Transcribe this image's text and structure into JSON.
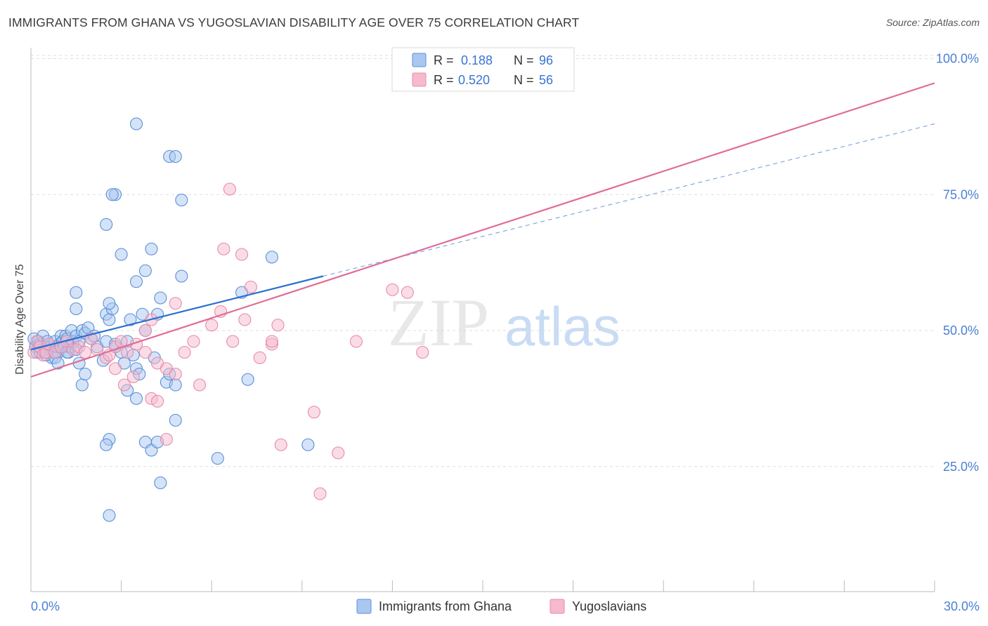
{
  "title": "IMMIGRANTS FROM GHANA VS YUGOSLAVIAN DISABILITY AGE OVER 75 CORRELATION CHART",
  "source": "Source: ZipAtlas.com",
  "watermark": {
    "zip": "ZIP",
    "atlas": "atlas"
  },
  "colors": {
    "blue_fill": "#a9c7f0",
    "blue_stroke": "#5a8fd8",
    "blue_line": "#2a6fcf",
    "pink_fill": "#f6b9cd",
    "pink_stroke": "#e88aab",
    "pink_line": "#e06d98",
    "tick_text": "#4a7fd4",
    "grid": "#dddddd"
  },
  "legend": {
    "rows": [
      {
        "r_label": "R =",
        "r_value": "0.188",
        "n_label": "N =",
        "n_value": "96"
      },
      {
        "r_label": "R =",
        "r_value": "0.520",
        "n_label": "N =",
        "n_value": "56"
      }
    ]
  },
  "bottom_legend": {
    "series1": "Immigrants from Ghana",
    "series2": "Yugoslavians"
  },
  "chart_data": {
    "type": "scatter",
    "title": "IMMIGRANTS FROM GHANA VS YUGOSLAVIAN DISABILITY AGE OVER 75 CORRELATION CHART",
    "xlabel": "",
    "ylabel": "Disability Age Over 75",
    "xlim": [
      0,
      30
    ],
    "ylim": [
      2,
      102
    ],
    "x_tick_labels": [
      "0.0%",
      "30.0%"
    ],
    "y_ticks": [
      25,
      50,
      75,
      100
    ],
    "y_tick_labels": [
      "25.0%",
      "50.0%",
      "75.0%",
      "100.0%"
    ],
    "series": [
      {
        "name": "Immigrants from Ghana",
        "color": "blue",
        "R": 0.188,
        "N": 96,
        "trend": {
          "x": [
            0,
            9.7
          ],
          "y": [
            46.5,
            60.0
          ],
          "dash_x": [
            9.7,
            30
          ],
          "dash_y": [
            60.0,
            88.0
          ]
        },
        "points": [
          [
            0.1,
            48.5
          ],
          [
            0.15,
            47
          ],
          [
            0.2,
            46
          ],
          [
            0.25,
            48
          ],
          [
            0.3,
            47.5
          ],
          [
            0.35,
            46.5
          ],
          [
            0.4,
            49
          ],
          [
            0.45,
            46
          ],
          [
            0.5,
            47
          ],
          [
            0.55,
            48
          ],
          [
            0.6,
            46.5
          ],
          [
            0.65,
            47
          ],
          [
            0.7,
            45
          ],
          [
            0.75,
            46
          ],
          [
            0.8,
            48
          ],
          [
            0.85,
            47
          ],
          [
            0.9,
            46
          ],
          [
            0.95,
            47.5
          ],
          [
            1.0,
            49
          ],
          [
            1.05,
            48
          ],
          [
            1.1,
            47
          ],
          [
            1.15,
            49
          ],
          [
            1.2,
            48.5
          ],
          [
            1.25,
            46
          ],
          [
            1.3,
            47
          ],
          [
            1.35,
            50
          ],
          [
            1.4,
            48
          ],
          [
            1.5,
            49
          ],
          [
            1.6,
            48
          ],
          [
            1.7,
            50
          ],
          [
            0.3,
            46
          ],
          [
            0.5,
            45.5
          ],
          [
            0.8,
            45
          ],
          [
            1.2,
            46
          ],
          [
            1.5,
            46.5
          ],
          [
            1.8,
            49.5
          ],
          [
            2.0,
            48.5
          ],
          [
            2.2,
            47
          ],
          [
            2.5,
            48
          ],
          [
            2.8,
            47.5
          ],
          [
            0.9,
            44
          ],
          [
            1.6,
            44
          ],
          [
            1.7,
            40
          ],
          [
            1.8,
            42
          ],
          [
            1.9,
            50.5
          ],
          [
            2.1,
            49
          ],
          [
            2.4,
            44.5
          ],
          [
            2.5,
            53
          ],
          [
            2.6,
            52
          ],
          [
            2.7,
            54
          ],
          [
            2.8,
            47
          ],
          [
            3.0,
            46
          ],
          [
            3.1,
            44
          ],
          [
            3.2,
            48
          ],
          [
            3.3,
            52
          ],
          [
            3.4,
            45.5
          ],
          [
            3.5,
            43
          ],
          [
            3.6,
            42
          ],
          [
            3.7,
            53
          ],
          [
            3.8,
            50
          ],
          [
            1.5,
            57
          ],
          [
            1.5,
            54
          ],
          [
            2.6,
            55
          ],
          [
            3.0,
            64
          ],
          [
            3.5,
            59
          ],
          [
            3.8,
            61
          ],
          [
            4.0,
            65
          ],
          [
            4.1,
            45
          ],
          [
            4.2,
            53
          ],
          [
            4.3,
            56
          ],
          [
            4.5,
            40.5
          ],
          [
            4.6,
            42
          ],
          [
            4.8,
            40
          ],
          [
            5.0,
            60
          ],
          [
            2.5,
            69.5
          ],
          [
            2.8,
            75
          ],
          [
            2.6,
            30
          ],
          [
            2.5,
            29
          ],
          [
            3.2,
            39
          ],
          [
            3.5,
            37.5
          ],
          [
            3.8,
            29.5
          ],
          [
            4.0,
            28
          ],
          [
            4.2,
            29.5
          ],
          [
            4.8,
            33.5
          ],
          [
            5.0,
            74
          ],
          [
            4.6,
            82
          ],
          [
            4.8,
            82
          ],
          [
            3.5,
            88
          ],
          [
            2.7,
            75
          ],
          [
            4.3,
            22
          ],
          [
            2.6,
            16
          ],
          [
            6.2,
            26.5
          ],
          [
            7.0,
            57
          ],
          [
            7.2,
            41
          ],
          [
            8.0,
            63.5
          ],
          [
            9.2,
            29
          ]
        ]
      },
      {
        "name": "Yugoslavians",
        "color": "pink",
        "R": 0.52,
        "N": 56,
        "trend": {
          "x": [
            0,
            30
          ],
          "y": [
            41.5,
            95.5
          ]
        },
        "points": [
          [
            0.1,
            46
          ],
          [
            0.2,
            48
          ],
          [
            0.3,
            47
          ],
          [
            0.4,
            45.5
          ],
          [
            0.5,
            46
          ],
          [
            0.6,
            47.5
          ],
          [
            0.8,
            46
          ],
          [
            1.0,
            47
          ],
          [
            1.2,
            48
          ],
          [
            1.4,
            46.5
          ],
          [
            1.6,
            47
          ],
          [
            1.8,
            46
          ],
          [
            2.0,
            48.5
          ],
          [
            2.2,
            46.5
          ],
          [
            2.5,
            45
          ],
          [
            2.8,
            47
          ],
          [
            3.0,
            48
          ],
          [
            3.2,
            46
          ],
          [
            3.5,
            47.5
          ],
          [
            3.8,
            46
          ],
          [
            2.6,
            45.5
          ],
          [
            2.8,
            43
          ],
          [
            3.1,
            40
          ],
          [
            3.4,
            41.5
          ],
          [
            3.8,
            50
          ],
          [
            4.0,
            52
          ],
          [
            4.2,
            44
          ],
          [
            4.5,
            43
          ],
          [
            4.8,
            42
          ],
          [
            5.1,
            46
          ],
          [
            5.4,
            48
          ],
          [
            5.6,
            40
          ],
          [
            6.0,
            51
          ],
          [
            6.3,
            53.5
          ],
          [
            6.7,
            48
          ],
          [
            7.1,
            52
          ],
          [
            7.3,
            58
          ],
          [
            7.6,
            45
          ],
          [
            8.0,
            47.5
          ],
          [
            8.2,
            51
          ],
          [
            4.8,
            55
          ],
          [
            6.4,
            65
          ],
          [
            7.0,
            64
          ],
          [
            6.6,
            76
          ],
          [
            8.0,
            48
          ],
          [
            4.5,
            30
          ],
          [
            4.0,
            37.5
          ],
          [
            4.2,
            37
          ],
          [
            9.4,
            35
          ],
          [
            9.6,
            20
          ],
          [
            8.3,
            29
          ],
          [
            10.2,
            27.5
          ],
          [
            10.8,
            48
          ],
          [
            12.0,
            57.5
          ],
          [
            12.5,
            57
          ],
          [
            13.0,
            46
          ]
        ]
      }
    ]
  }
}
